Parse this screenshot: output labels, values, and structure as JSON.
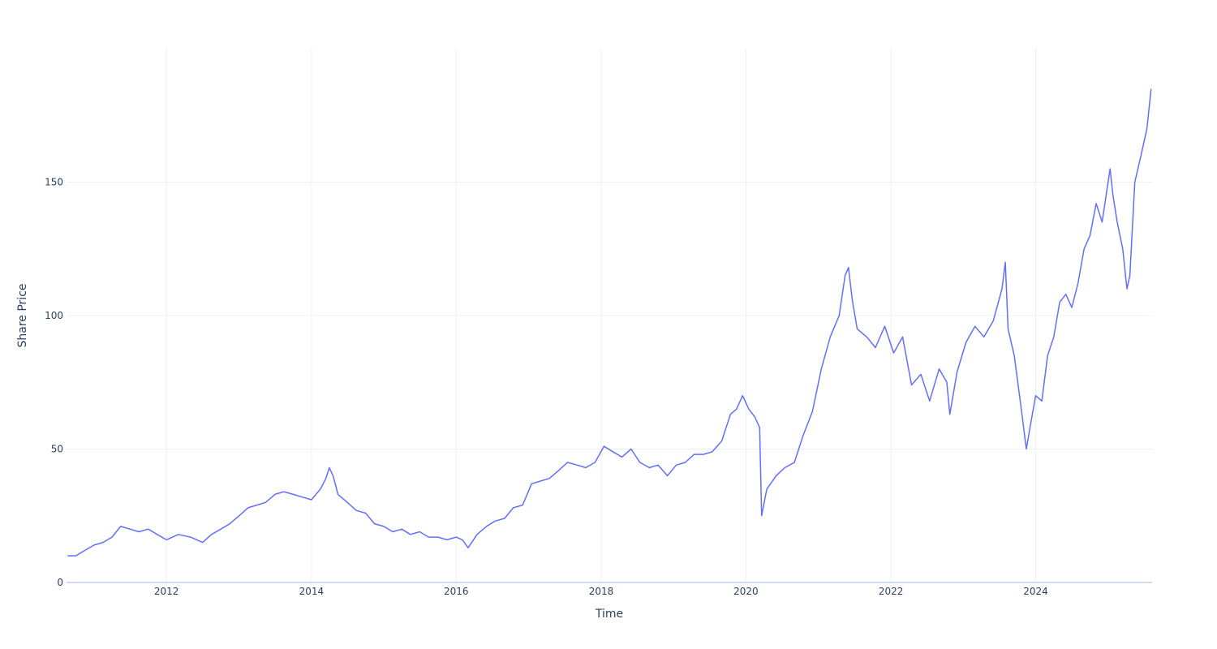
{
  "chart_data": {
    "type": "line",
    "title": "",
    "xlabel": "Time",
    "ylabel": "Share Price",
    "x_tick_labels": [
      "2012",
      "2014",
      "2016",
      "2018",
      "2020",
      "2022",
      "2024"
    ],
    "y_tick_labels": [
      "0",
      "50",
      "100",
      "150"
    ],
    "xlim": [
      "2010-08-15",
      "2025-08-10"
    ],
    "ylim": [
      0,
      200
    ],
    "grid": true,
    "legend": "none",
    "colors": {
      "line": "#636efa",
      "grid": "#ebf0f8",
      "zeroline": "#d0dbef",
      "text": "#2a3f5f"
    },
    "series": [
      {
        "x": [
          "2010-08-20",
          "2010-10-01",
          "2010-11-15",
          "2011-01-01",
          "2011-02-15",
          "2011-04-01",
          "2011-05-15",
          "2011-07-01",
          "2011-08-15",
          "2011-10-01",
          "2011-11-15",
          "2012-01-01",
          "2012-03-01",
          "2012-05-01",
          "2012-07-01",
          "2012-08-15",
          "2012-10-01",
          "2012-11-15",
          "2013-01-01",
          "2013-02-15",
          "2013-04-01",
          "2013-05-15",
          "2013-07-01",
          "2013-08-15",
          "2013-10-01",
          "2013-11-15",
          "2014-01-01",
          "2014-02-15",
          "2014-03-15",
          "2014-04-01",
          "2014-04-20",
          "2014-05-15",
          "2014-07-01",
          "2014-08-15",
          "2014-10-01",
          "2014-11-15",
          "2015-01-01",
          "2015-02-15",
          "2015-04-01",
          "2015-05-15",
          "2015-07-01",
          "2015-08-15",
          "2015-10-01",
          "2015-11-15",
          "2016-01-01",
          "2016-02-01",
          "2016-03-01",
          "2016-04-15",
          "2016-06-01",
          "2016-07-15",
          "2016-09-01",
          "2016-10-15",
          "2016-12-01",
          "2017-01-15",
          "2017-03-01",
          "2017-04-15",
          "2017-06-01",
          "2017-07-15",
          "2017-09-01",
          "2017-10-15",
          "2017-12-01",
          "2018-01-15",
          "2018-03-01",
          "2018-04-15",
          "2018-06-01",
          "2018-07-15",
          "2018-09-01",
          "2018-10-15",
          "2018-12-01",
          "2019-01-15",
          "2019-03-01",
          "2019-04-15",
          "2019-06-01",
          "2019-07-15",
          "2019-09-01",
          "2019-10-15",
          "2019-11-15",
          "2019-12-15",
          "2020-01-15",
          "2020-02-15",
          "2020-03-10",
          "2020-03-20",
          "2020-04-15",
          "2020-06-01",
          "2020-07-15",
          "2020-09-01",
          "2020-10-15",
          "2020-12-01",
          "2021-01-15",
          "2021-03-01",
          "2021-04-15",
          "2021-05-15",
          "2021-06-01",
          "2021-06-20",
          "2021-07-15",
          "2021-09-01",
          "2021-10-15",
          "2021-12-01",
          "2022-01-15",
          "2022-03-01",
          "2022-04-15",
          "2022-06-01",
          "2022-07-15",
          "2022-09-01",
          "2022-10-10",
          "2022-10-25",
          "2022-12-01",
          "2023-01-15",
          "2023-03-01",
          "2023-04-15",
          "2023-06-01",
          "2023-07-15",
          "2023-08-01",
          "2023-08-15",
          "2023-09-15",
          "2023-10-15",
          "2023-11-15",
          "2023-12-01",
          "2024-01-01",
          "2024-02-01",
          "2024-03-01",
          "2024-04-01",
          "2024-05-01",
          "2024-06-01",
          "2024-07-01",
          "2024-08-01",
          "2024-09-01",
          "2024-10-01",
          "2024-11-01",
          "2024-12-01",
          "2025-01-10",
          "2025-01-25",
          "2025-02-15",
          "2025-03-15",
          "2025-04-05",
          "2025-04-20",
          "2025-05-15",
          "2025-06-15",
          "2025-07-15",
          "2025-08-05"
        ],
        "values": [
          10,
          10,
          12,
          14,
          15,
          17,
          21,
          20,
          19,
          20,
          18,
          16,
          18,
          17,
          15,
          18,
          20,
          22,
          25,
          28,
          29,
          30,
          33,
          34,
          33,
          32,
          31,
          35,
          39,
          43,
          40,
          33,
          30,
          27,
          26,
          22,
          21,
          19,
          20,
          18,
          19,
          17,
          17,
          16,
          17,
          16,
          13,
          18,
          21,
          23,
          24,
          28,
          29,
          37,
          38,
          39,
          42,
          45,
          44,
          43,
          45,
          51,
          49,
          47,
          50,
          45,
          43,
          44,
          40,
          44,
          45,
          48,
          48,
          49,
          53,
          63,
          65,
          70,
          65,
          62,
          58,
          25,
          35,
          40,
          43,
          45,
          55,
          64,
          80,
          92,
          100,
          115,
          118,
          106,
          95,
          92,
          88,
          96,
          86,
          92,
          74,
          78,
          68,
          80,
          75,
          63,
          79,
          90,
          96,
          92,
          98,
          110,
          120,
          95,
          85,
          68,
          50,
          57,
          70,
          68,
          85,
          92,
          105,
          108,
          103,
          112,
          125,
          130,
          142,
          135,
          155,
          145,
          135,
          125,
          110,
          115,
          150,
          160,
          170,
          185
        ]
      }
    ]
  }
}
